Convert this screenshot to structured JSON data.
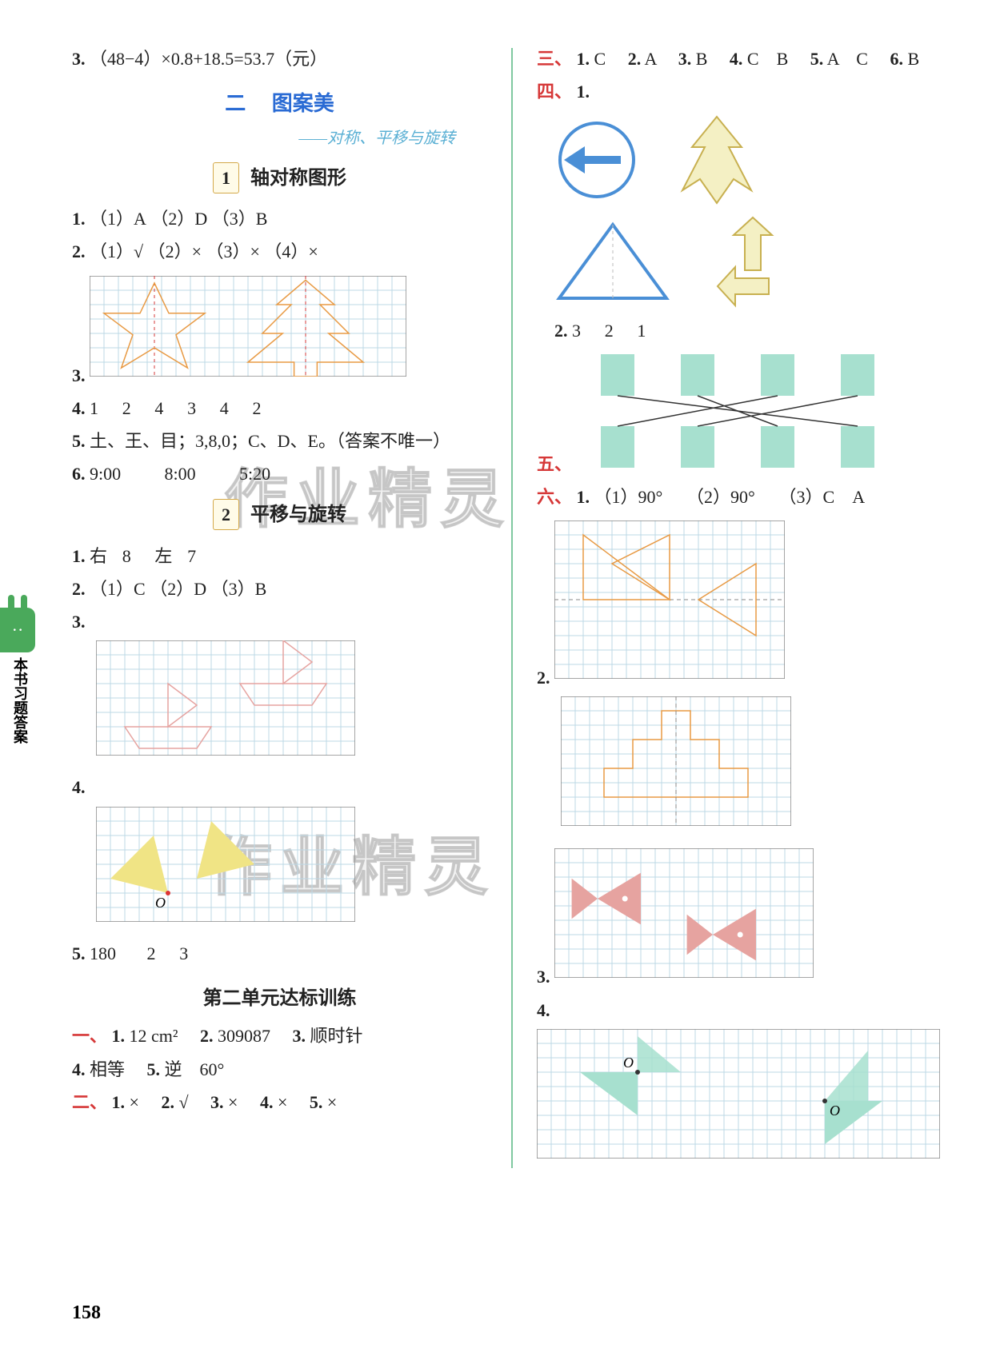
{
  "colors": {
    "blue": "#2a6bd4",
    "red": "#d63838",
    "teal": "#5bb0d4",
    "grid": "#bcd8e6",
    "star": "#e89a44",
    "tree": "#e89a44",
    "dash": "#d63838",
    "green_tab": "#4aa95b",
    "mint": "#a7e0cf",
    "fish": "#e6a3a0",
    "yellow": "#f0e485",
    "outline": "#888",
    "divider": "#7fc9a0",
    "badge_border": "#d4a94a"
  },
  "page_number": "158",
  "side_tab": {
    "label": "本书习题答案"
  },
  "watermark": "作业精灵",
  "left": {
    "top_line": {
      "num": "3.",
      "text": "（48−4）×0.8+18.5=53.7（元）"
    },
    "chapter": {
      "num": "二",
      "title": "图案美"
    },
    "sub_caption": "——对称、平移与旋转",
    "sec1": {
      "badge": "1",
      "title": "轴对称图形"
    },
    "s1_q1": {
      "num": "1.",
      "parts": [
        "（1）A",
        "（2）D",
        "（3）B"
      ]
    },
    "s1_q2": {
      "num": "2.",
      "parts": [
        "（1）√",
        "（2）×",
        "（3）×",
        "（4）×"
      ]
    },
    "s1_q3": {
      "num": "3."
    },
    "s1_q4": {
      "num": "4.",
      "vals": [
        "1",
        "2",
        "4",
        "3",
        "4",
        "2"
      ]
    },
    "s1_q5": {
      "num": "5.",
      "text": "土、王、目；3,8,0；C、D、E。（答案不唯一）"
    },
    "s1_q6": {
      "num": "6.",
      "vals": [
        "9:00",
        "8:00",
        "5:20"
      ]
    },
    "sec2": {
      "badge": "2",
      "title": "平移与旋转"
    },
    "s2_q1": {
      "num": "1.",
      "parts": [
        "右",
        "8",
        "左",
        "7"
      ]
    },
    "s2_q2": {
      "num": "2.",
      "parts": [
        "（1）C",
        "（2）D",
        "（3）B"
      ]
    },
    "s2_q3": {
      "num": "3."
    },
    "s2_q4": {
      "num": "4.",
      "o_label": "O"
    },
    "s2_q5": {
      "num": "5.",
      "vals": [
        "180",
        "2",
        "3"
      ]
    },
    "unit_title": "第二单元达标训练",
    "u_q1": {
      "prefix": "一、",
      "items": [
        {
          "n": "1.",
          "t": "12 cm²"
        },
        {
          "n": "2.",
          "t": "309087"
        },
        {
          "n": "3.",
          "t": "顺时针"
        }
      ]
    },
    "u_q1b": {
      "items": [
        {
          "n": "4.",
          "t": "相等"
        },
        {
          "n": "5.",
          "t": "逆　60°"
        }
      ]
    },
    "u_q2": {
      "prefix": "二、",
      "items": [
        {
          "n": "1.",
          "t": "×"
        },
        {
          "n": "2.",
          "t": "√"
        },
        {
          "n": "3.",
          "t": "×"
        },
        {
          "n": "4.",
          "t": "×"
        },
        {
          "n": "5.",
          "t": "×"
        }
      ]
    }
  },
  "right": {
    "q3": {
      "prefix": "三、",
      "items": [
        {
          "n": "1.",
          "t": "C"
        },
        {
          "n": "2.",
          "t": "A"
        },
        {
          "n": "3.",
          "t": "B"
        },
        {
          "n": "4.",
          "t": "C　B"
        },
        {
          "n": "5.",
          "t": "A　C"
        },
        {
          "n": "6.",
          "t": "B"
        }
      ]
    },
    "q4": {
      "prefix": "四、",
      "n1": "1."
    },
    "q4_2": {
      "n": "2.",
      "vals": [
        "3",
        "2",
        "1"
      ]
    },
    "q5": {
      "prefix": "五、"
    },
    "q6": {
      "prefix": "六、",
      "n1": "1.",
      "parts": [
        "（1）90°",
        "（2）90°",
        "（3）C　A"
      ]
    },
    "q6_2": {
      "n": "2."
    },
    "q6_3": {
      "n": "3."
    },
    "q6_4": {
      "n": "4.",
      "o_label": "O"
    }
  },
  "grids": {
    "star_tree": {
      "cols": 22,
      "rows": 7,
      "cell": 18
    },
    "boat": {
      "cols": 18,
      "rows": 8,
      "cell": 18
    },
    "rot_yel": {
      "cols": 18,
      "rows": 8,
      "cell": 18
    },
    "r_q2a": {
      "cols": 16,
      "rows": 11,
      "cell": 18
    },
    "r_q2b": {
      "cols": 16,
      "rows": 9,
      "cell": 18
    },
    "r_q3": {
      "cols": 18,
      "rows": 9,
      "cell": 18
    },
    "r_q4": {
      "cols": 28,
      "rows": 9,
      "cell": 18
    }
  }
}
